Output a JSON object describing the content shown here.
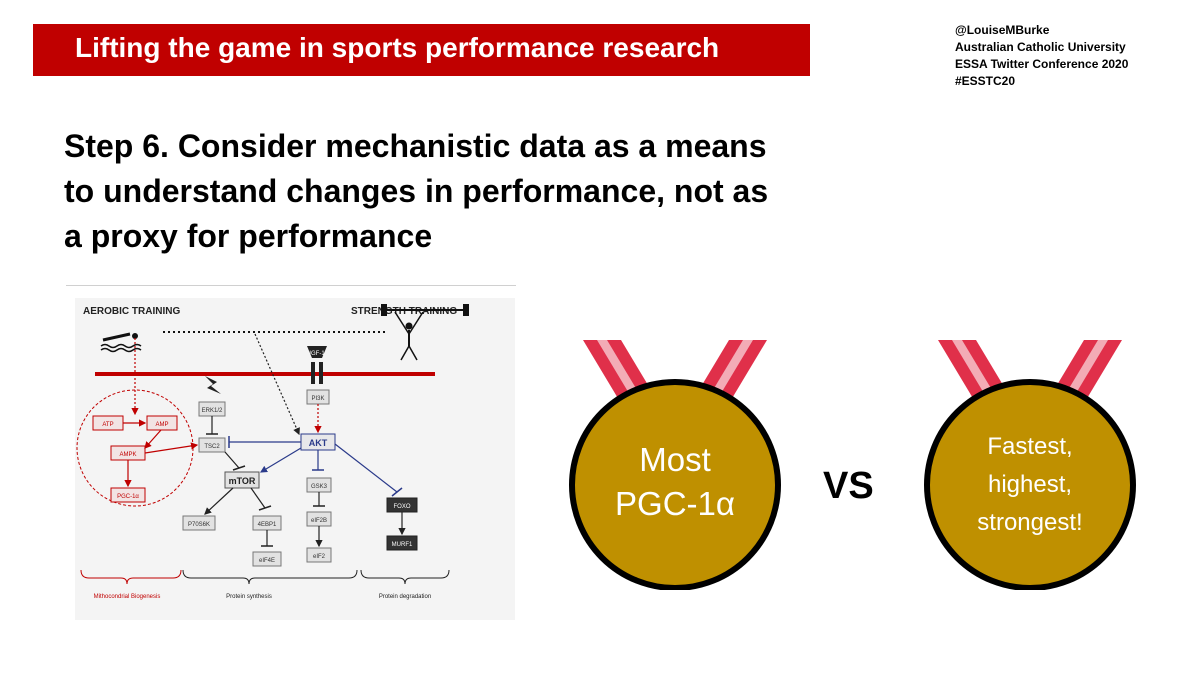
{
  "banner": {
    "title": "Lifting the game in sports performance research",
    "color": "#c00000"
  },
  "credits": {
    "handle": "@LouiseMBurke",
    "institution": "Australian Catholic University",
    "conference": "ESSA Twitter Conference 2020",
    "hashtag": "#ESSTC20"
  },
  "heading": {
    "line1": "Step 6.  Consider mechanistic data as a means",
    "line2": "to understand changes in performance, not as",
    "line3": "a proxy for performance"
  },
  "diagram": {
    "aerobic_label": "AEROBIC TRAINING",
    "strength_label": "STRENGTH TRAINING",
    "nodes": {
      "igf1": "IGF-1",
      "pi3k": "PI3K",
      "akt": "AKT",
      "erk": "ERK1/2",
      "tsc2": "TSC2",
      "mtor": "mTOR",
      "gsk3": "GSK3",
      "eif2b": "eIF2B",
      "eif2": "eIF2",
      "foxo": "FOXO",
      "murf1": "MURF1",
      "p70s6k": "P70S6K",
      "ebp1": "4EBP1",
      "eif4e": "eIF4E",
      "atp": "ATP",
      "amp": "AMP",
      "ampk": "AMPK",
      "pgc": "PGC-1α"
    },
    "groups": {
      "mito": "Mithocondrial Biogenesis",
      "synthesis": "Protein synthesis",
      "degradation": "Protein degradation"
    }
  },
  "medals": {
    "left": {
      "line1": "Most",
      "line2": "PGC-1α"
    },
    "vs": "VS",
    "right": {
      "line1": "Fastest,",
      "line2": "highest,",
      "line3": "strongest!"
    },
    "gold": "#bf9000",
    "ribbon": "#e0304a"
  }
}
